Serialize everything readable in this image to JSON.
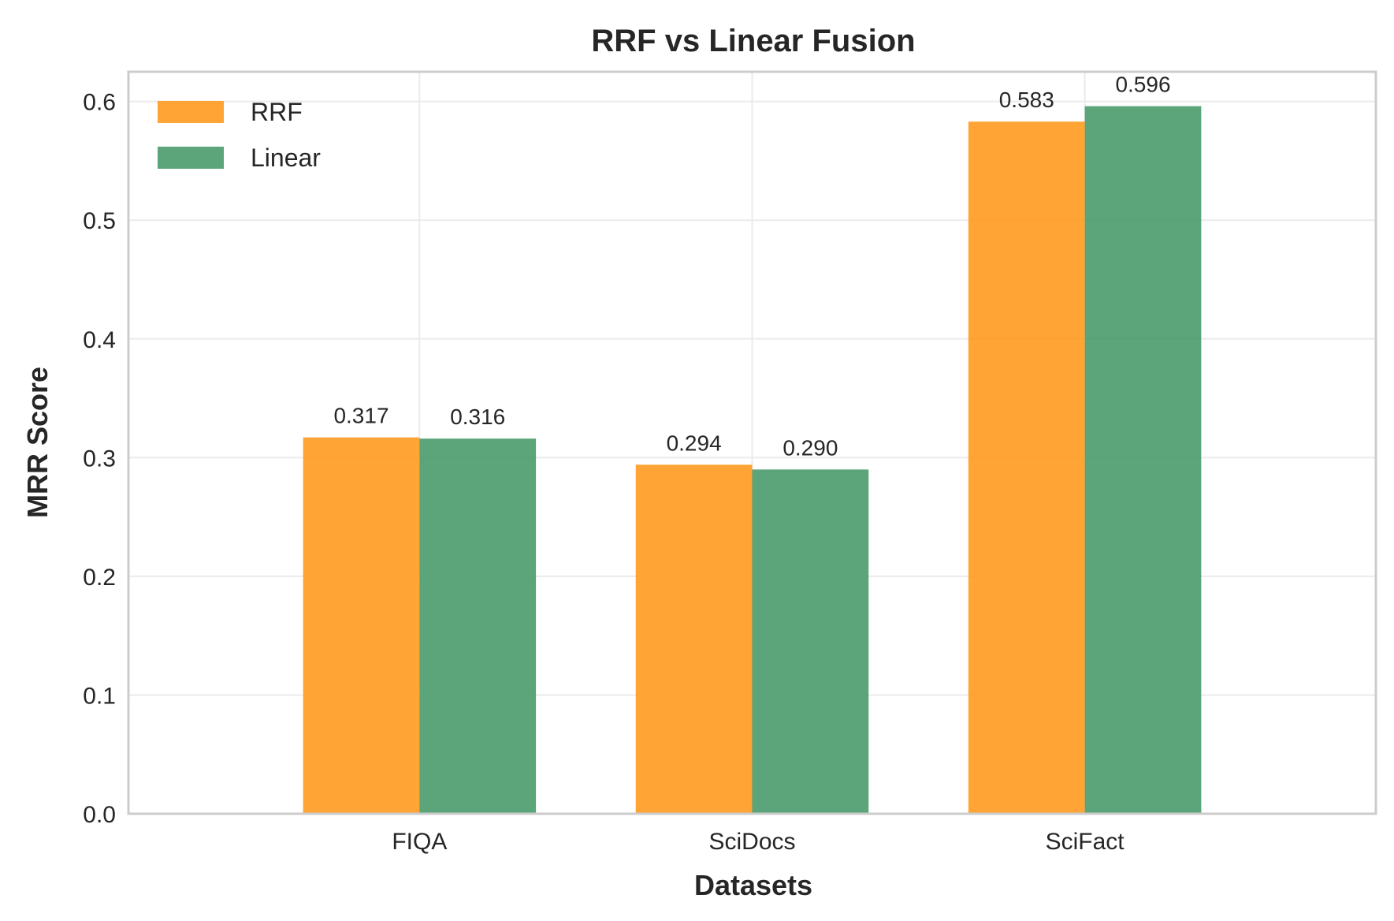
{
  "chart_data": {
    "type": "bar",
    "title": "RRF vs Linear Fusion",
    "xlabel": "Datasets",
    "ylabel": "MRR Score",
    "categories": [
      "FIQA",
      "SciDocs",
      "SciFact"
    ],
    "series": [
      {
        "name": "RRF",
        "values": [
          0.317,
          0.294,
          0.583
        ],
        "labels": [
          "0.317",
          "0.294",
          "0.583"
        ],
        "color": "#ff9a1f"
      },
      {
        "name": "Linear",
        "values": [
          0.316,
          0.29,
          0.596
        ],
        "labels": [
          "0.316",
          "0.290",
          "0.596"
        ],
        "color": "#4a9a6a"
      }
    ],
    "ylim": [
      0,
      0.625
    ],
    "yticks": [
      0.0,
      0.1,
      0.2,
      0.3,
      0.4,
      0.5,
      0.6
    ],
    "ytick_labels": [
      "0.0",
      "0.1",
      "0.2",
      "0.3",
      "0.4",
      "0.5",
      "0.6"
    ],
    "grid": true,
    "legend_position": "top-left"
  }
}
